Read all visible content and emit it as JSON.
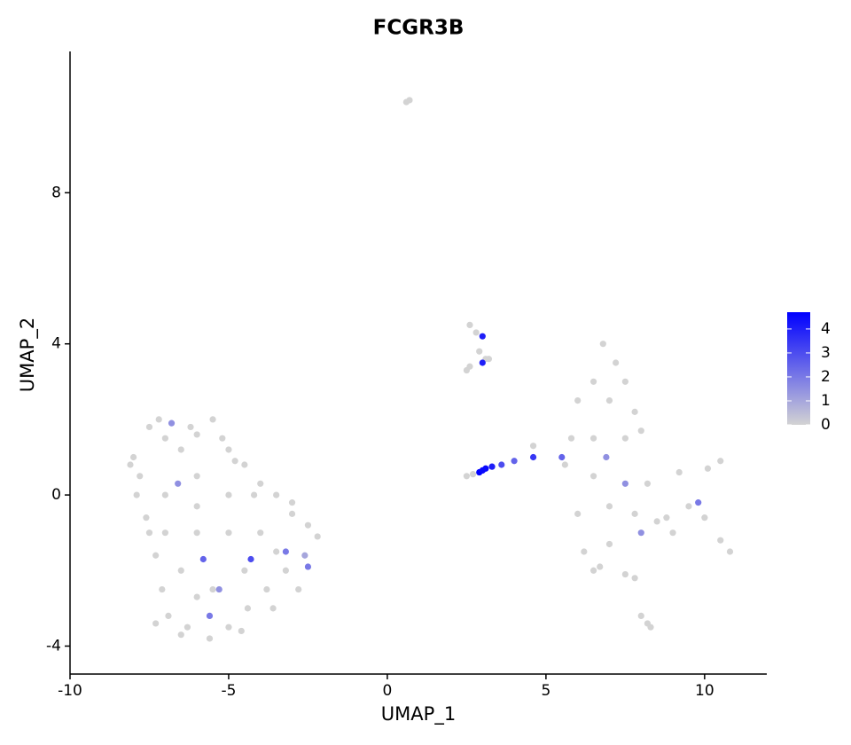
{
  "chart_data": {
    "type": "scatter",
    "title": "FCGR3B",
    "x_label": "UMAP_1",
    "y_label": "UMAP_2",
    "xlim": [
      -10,
      11.96
    ],
    "ylim": [
      -4.74,
      11.74
    ],
    "xticks": [
      -10,
      -5,
      0,
      5,
      10
    ],
    "yticks": [
      -4,
      0,
      4,
      8
    ],
    "color_low": "#d3d3d3",
    "color_high": "#0000ff",
    "colorlim": [
      0,
      4.7
    ],
    "colorticks": [
      0,
      1,
      2,
      3,
      4
    ],
    "x": [
      -8,
      -7.8,
      -7.5,
      -7.2,
      -7,
      -6.8,
      -6.5,
      -6,
      -5.5,
      -5,
      -4.5,
      -4,
      -3.5,
      -3,
      -2.5,
      -2.2,
      -2.6,
      -3.2,
      -3.8,
      -4.4,
      -5,
      -5.6,
      -6.3,
      -6.9,
      -7.1,
      -7.3,
      -7.6,
      -7.9,
      -7,
      -6,
      -5,
      -4,
      -5,
      -6,
      -6.5,
      -5.5,
      -4.5,
      -3.5,
      -4.8,
      -6.6,
      -5.8,
      -5.6,
      -4.3,
      -3.2,
      -2.5,
      -5.3,
      -7,
      -6,
      -3,
      -4.2,
      -5.2,
      -6.2,
      -7.5,
      -8.1,
      -2.8,
      -3.6,
      -4.6,
      -6.5,
      -7.3,
      -6,
      6.8,
      7.2,
      6.5,
      7.5,
      6,
      7,
      7.8,
      5.8,
      6.5,
      7.5,
      8,
      5.6,
      6.5,
      7.5,
      8.2,
      6,
      7,
      7.8,
      8.5,
      6.2,
      7,
      8,
      8.8,
      9.5,
      10,
      10.5,
      10.8,
      9,
      9.8,
      10.5,
      10.1,
      9.2,
      6.7,
      7.5,
      6.5,
      7.8,
      6.9,
      5.5,
      0.6,
      0.7,
      2.6,
      2.8,
      3,
      2.9,
      3.1,
      3,
      3.2,
      2.5,
      2.6,
      2.5,
      2.7,
      2.9,
      3,
      3.1,
      3.3,
      3.6,
      4,
      4.6,
      4.6,
      8,
      8.2,
      8.3
    ],
    "y": [
      1,
      0.5,
      1.8,
      2,
      1.5,
      1.9,
      1.2,
      1.6,
      2,
      1.2,
      0.8,
      0.3,
      0,
      -0.5,
      -0.8,
      -1.1,
      -1.6,
      -2,
      -2.5,
      -3,
      -3.5,
      -3.8,
      -3.5,
      -3.2,
      -2.5,
      -1.6,
      -0.6,
      0,
      0,
      0.5,
      0,
      -1,
      -1,
      -1,
      -2,
      -2.5,
      -2,
      -1.5,
      0.9,
      0.3,
      -1.7,
      -3.2,
      -1.7,
      -1.5,
      -1.9,
      -2.5,
      -1,
      -0.3,
      -0.2,
      0,
      1.5,
      1.8,
      -1,
      0.8,
      -2.5,
      -3,
      -3.6,
      -3.7,
      -3.4,
      -2.7,
      4,
      3.5,
      3,
      3,
      2.5,
      2.5,
      2.2,
      1.5,
      1.5,
      1.5,
      1.7,
      0.8,
      0.5,
      0.3,
      0.3,
      -0.5,
      -0.3,
      -0.5,
      -0.7,
      -1.5,
      -1.3,
      -1,
      -0.6,
      -0.3,
      -0.6,
      -1.2,
      -1.5,
      -1,
      -0.2,
      0.9,
      0.7,
      0.6,
      -1.9,
      -2.1,
      -2,
      -2.2,
      1,
      1,
      10.4,
      10.45,
      4.5,
      4.3,
      4.2,
      3.8,
      3.6,
      3.5,
      3.6,
      3.3,
      3.4,
      0.5,
      0.55,
      0.6,
      0.65,
      0.7,
      0.75,
      0.8,
      0.9,
      1,
      1.3,
      -3.2,
      -3.4,
      -3.5
    ],
    "values": [
      0,
      0,
      0,
      0,
      0,
      1.5,
      0,
      0,
      0,
      0,
      0,
      0,
      0,
      0,
      0,
      0,
      1,
      0,
      0,
      0,
      0,
      0,
      0,
      0,
      0,
      0,
      0,
      0,
      0,
      0,
      0,
      0,
      0,
      0,
      0,
      0,
      0,
      0,
      0,
      1.5,
      2.5,
      2,
      3,
      2,
      2,
      1.5,
      0,
      0,
      0,
      0,
      0,
      0,
      0,
      0,
      0,
      0,
      0,
      0,
      0,
      0,
      0,
      0,
      0,
      0,
      0,
      0,
      0,
      0,
      0,
      0,
      0,
      0,
      0,
      1.5,
      0,
      0,
      0,
      0,
      0,
      0,
      0,
      1.5,
      0,
      0,
      0,
      0,
      0,
      0,
      2,
      0,
      0,
      0,
      0,
      0,
      0,
      0,
      1.5,
      2.5,
      0,
      0,
      0,
      0,
      4,
      0,
      0,
      4,
      0,
      0,
      0,
      0,
      0,
      4.7,
      4.5,
      4.5,
      4,
      3,
      2.5,
      3.5,
      0,
      0,
      0,
      0
    ]
  }
}
